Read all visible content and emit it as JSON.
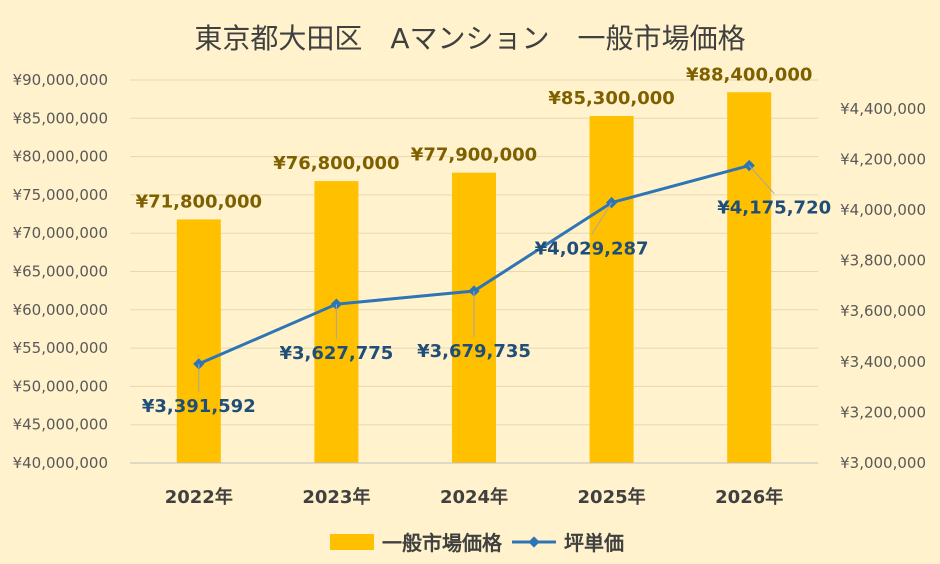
{
  "chart_data": {
    "type": "bar",
    "title": "東京都大田区　Aマンション　一般市場価格",
    "categories": [
      "2022年",
      "2023年",
      "2024年",
      "2025年",
      "2026年"
    ],
    "series": [
      {
        "name": "一般市場価格",
        "type": "bar",
        "axis": "left",
        "color": "#FFC000",
        "values": [
          71800000,
          76800000,
          77900000,
          85300000,
          88400000
        ],
        "labels": [
          "¥71,800,000",
          "¥76,800,000",
          "¥77,900,000",
          "¥85,300,000",
          "¥88,400,000"
        ]
      },
      {
        "name": "坪単価",
        "type": "line",
        "axis": "right",
        "color": "#2E75B6",
        "values": [
          3391592,
          3627775,
          3679735,
          4029287,
          4175720
        ],
        "labels": [
          "¥3,391,592",
          "¥3,627,775",
          "¥3,679,735",
          "¥4,029,287",
          "¥4,175,720"
        ]
      }
    ],
    "y_left": {
      "min": 40000000,
      "max": 90000000,
      "step": 5000000,
      "ticks": [
        "¥40,000,000",
        "¥45,000,000",
        "¥50,000,000",
        "¥55,000,000",
        "¥60,000,000",
        "¥65,000,000",
        "¥70,000,000",
        "¥75,000,000",
        "¥80,000,000",
        "¥85,000,000",
        "¥90,000,000"
      ]
    },
    "y_right": {
      "min": 3000000,
      "max": 4500000,
      "step": 200000,
      "ticks": [
        "¥3,000,000",
        "¥3,200,000",
        "¥3,400,000",
        "¥3,600,000",
        "¥3,800,000",
        "¥4,000,000",
        "¥4,200,000",
        "¥4,400,000"
      ]
    },
    "grid": true,
    "legend": "bottom",
    "background": "#FFF2CC"
  }
}
